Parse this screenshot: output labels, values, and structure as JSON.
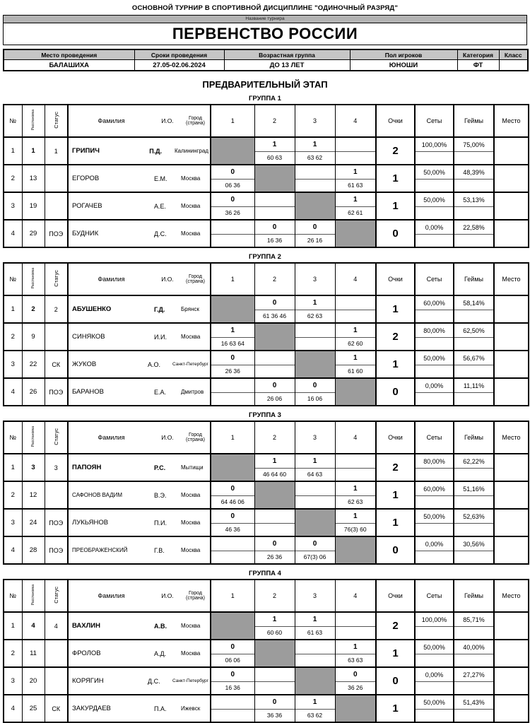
{
  "header": {
    "top_line": "ОСНОВНОЙ ТУРНИР В СПОРТИВНОЙ ДИСЦИПЛИНЕ \"ОДИНОЧНЫЙ РАЗРЯД\"",
    "tournament_name_label": "Название турнира",
    "tournament_name": "ПЕРВЕНСТВО РОССИИ"
  },
  "info": {
    "columns": [
      "Место проведения",
      "Сроки проведения",
      "Возрастная группа",
      "Пол игроков",
      "Категория",
      "Класс"
    ],
    "values": [
      "БАЛАШИХА",
      "27.05-02.06.2024",
      "ДО 13 ЛЕТ",
      "ЮНОШИ",
      "ФТ",
      ""
    ]
  },
  "stage_title": "ПРЕДВАРИТЕЛЬНЫЙ ЭТАП",
  "table_headers": {
    "num": "№",
    "seed": "Расстановка",
    "status": "Статус",
    "surname": "Фамилия",
    "initials": "И.О.",
    "city": "Город (страна)",
    "cols": [
      "1",
      "2",
      "3",
      "4"
    ],
    "points": "Очки",
    "sets": "Сеты",
    "games": "Геймы",
    "place": "Место"
  },
  "colors": {
    "diagonal_gray": "#9c9c9c",
    "info_header_gray": "#c6c6c6",
    "name_strip_gray": "#b3b3b3"
  },
  "groups": [
    {
      "title": "ГРУППА 1",
      "players": [
        {
          "num": "1",
          "seed": "1",
          "status": "1",
          "surname": "ГРИПИЧ",
          "initials": "П.Д.",
          "city": "Калининград",
          "seeded": true,
          "matches": [
            {
              "self": true
            },
            {
              "res": "1",
              "score": "60 63"
            },
            {
              "res": "1",
              "score": "63 62"
            },
            {
              "res": "",
              "score": ""
            }
          ],
          "points": "2",
          "sets": "100,00%",
          "games": "75,00%",
          "place": ""
        },
        {
          "num": "2",
          "seed": "13",
          "status": "",
          "surname": "ЕГОРОВ",
          "initials": "Е.М.",
          "city": "Москва",
          "seeded": false,
          "matches": [
            {
              "res": "0",
              "score": "06 36"
            },
            {
              "self": true
            },
            {
              "res": "",
              "score": ""
            },
            {
              "res": "1",
              "score": "61 63"
            }
          ],
          "points": "1",
          "sets": "50,00%",
          "games": "48,39%",
          "place": ""
        },
        {
          "num": "3",
          "seed": "19",
          "status": "",
          "surname": "РОГАЧЕВ",
          "initials": "А.Е.",
          "city": "Москва",
          "seeded": false,
          "matches": [
            {
              "res": "0",
              "score": "36 26"
            },
            {
              "res": "",
              "score": ""
            },
            {
              "self": true
            },
            {
              "res": "1",
              "score": "62 61"
            }
          ],
          "points": "1",
          "sets": "50,00%",
          "games": "53,13%",
          "place": ""
        },
        {
          "num": "4",
          "seed": "29",
          "status": "ПОЭ",
          "surname": "БУДНИК",
          "initials": "Д.С.",
          "city": "Москва",
          "seeded": false,
          "matches": [
            {
              "res": "",
              "score": ""
            },
            {
              "res": "0",
              "score": "16 36"
            },
            {
              "res": "0",
              "score": "26 16"
            },
            {
              "self": true
            }
          ],
          "points": "0",
          "sets": "0,00%",
          "games": "22,58%",
          "place": ""
        }
      ]
    },
    {
      "title": "ГРУППА 2",
      "players": [
        {
          "num": "1",
          "seed": "2",
          "status": "2",
          "surname": "АБУШЕНКО",
          "initials": "Г.Д.",
          "city": "Брянск",
          "seeded": true,
          "matches": [
            {
              "self": true
            },
            {
              "res": "0",
              "score": "61 36 46"
            },
            {
              "res": "1",
              "score": "62 63"
            },
            {
              "res": "",
              "score": ""
            }
          ],
          "points": "1",
          "sets": "60,00%",
          "games": "58,14%",
          "place": ""
        },
        {
          "num": "2",
          "seed": "9",
          "status": "",
          "surname": "СИНЯКОВ",
          "initials": "И.И.",
          "city": "Москва",
          "seeded": false,
          "matches": [
            {
              "res": "1",
              "score": "16 63 64"
            },
            {
              "self": true
            },
            {
              "res": "",
              "score": ""
            },
            {
              "res": "1",
              "score": "62 60"
            }
          ],
          "points": "2",
          "sets": "80,00%",
          "games": "62,50%",
          "place": ""
        },
        {
          "num": "3",
          "seed": "22",
          "status": "СК",
          "surname": "ЖУКОВ",
          "initials": "А.О.",
          "city": "Санкт-Петербург",
          "seeded": false,
          "matches": [
            {
              "res": "0",
              "score": "26 36"
            },
            {
              "res": "",
              "score": ""
            },
            {
              "self": true
            },
            {
              "res": "1",
              "score": "61 60"
            }
          ],
          "points": "1",
          "sets": "50,00%",
          "games": "56,67%",
          "place": ""
        },
        {
          "num": "4",
          "seed": "26",
          "status": "ПОЭ",
          "surname": "БАРАНОВ",
          "initials": "Е.А.",
          "city": "Дмитров",
          "seeded": false,
          "matches": [
            {
              "res": "",
              "score": ""
            },
            {
              "res": "0",
              "score": "26 06"
            },
            {
              "res": "0",
              "score": "16 06"
            },
            {
              "self": true
            }
          ],
          "points": "0",
          "sets": "0,00%",
          "games": "11,11%",
          "place": ""
        }
      ]
    },
    {
      "title": "ГРУППА 3",
      "players": [
        {
          "num": "1",
          "seed": "3",
          "status": "3",
          "surname": "ПАПОЯН",
          "initials": "Р.С.",
          "city": "Мытищи",
          "seeded": true,
          "matches": [
            {
              "self": true
            },
            {
              "res": "1",
              "score": "46 64 60"
            },
            {
              "res": "1",
              "score": "64 63"
            },
            {
              "res": "",
              "score": ""
            }
          ],
          "points": "2",
          "sets": "80,00%",
          "games": "62,22%",
          "place": ""
        },
        {
          "num": "2",
          "seed": "12",
          "status": "",
          "surname": "САФОНОВ ВАДИМ",
          "initials": "В.Э.",
          "city": "Москва",
          "seeded": false,
          "matches": [
            {
              "res": "0",
              "score": "64 46 06"
            },
            {
              "self": true
            },
            {
              "res": "",
              "score": ""
            },
            {
              "res": "1",
              "score": "62 63"
            }
          ],
          "points": "1",
          "sets": "60,00%",
          "games": "51,16%",
          "place": ""
        },
        {
          "num": "3",
          "seed": "24",
          "status": "ПОЭ",
          "surname": "ЛУКЬЯНОВ",
          "initials": "П.И.",
          "city": "Москва",
          "seeded": false,
          "matches": [
            {
              "res": "0",
              "score": "46 36"
            },
            {
              "res": "",
              "score": ""
            },
            {
              "self": true
            },
            {
              "res": "1",
              "score": "76(3) 60"
            }
          ],
          "points": "1",
          "sets": "50,00%",
          "games": "52,63%",
          "place": ""
        },
        {
          "num": "4",
          "seed": "28",
          "status": "ПОЭ",
          "surname": "ПРЕОБРАЖЕНСКИЙ",
          "initials": "Г.В.",
          "city": "Москва",
          "seeded": false,
          "matches": [
            {
              "res": "",
              "score": ""
            },
            {
              "res": "0",
              "score": "26 36"
            },
            {
              "res": "0",
              "score": "67(3) 06"
            },
            {
              "self": true
            }
          ],
          "points": "0",
          "sets": "0,00%",
          "games": "30,56%",
          "place": ""
        }
      ]
    },
    {
      "title": "ГРУППА 4",
      "players": [
        {
          "num": "1",
          "seed": "4",
          "status": "4",
          "surname": "ВАХЛИН",
          "initials": "А.В.",
          "city": "Москва",
          "seeded": true,
          "matches": [
            {
              "self": true
            },
            {
              "res": "1",
              "score": "60 60"
            },
            {
              "res": "1",
              "score": "61 63"
            },
            {
              "res": "",
              "score": ""
            }
          ],
          "points": "2",
          "sets": "100,00%",
          "games": "85,71%",
          "place": ""
        },
        {
          "num": "2",
          "seed": "11",
          "status": "",
          "surname": "ФРОЛОВ",
          "initials": "А.Д.",
          "city": "Москва",
          "seeded": false,
          "matches": [
            {
              "res": "0",
              "score": "06 06"
            },
            {
              "self": true
            },
            {
              "res": "",
              "score": ""
            },
            {
              "res": "1",
              "score": "63 63"
            }
          ],
          "points": "1",
          "sets": "50,00%",
          "games": "40,00%",
          "place": ""
        },
        {
          "num": "3",
          "seed": "20",
          "status": "",
          "surname": "КОРЯГИН",
          "initials": "Д.С.",
          "city": "Санкт-Петербург",
          "seeded": false,
          "matches": [
            {
              "res": "0",
              "score": "16 36"
            },
            {
              "res": "",
              "score": ""
            },
            {
              "self": true
            },
            {
              "res": "0",
              "score": "36 26"
            }
          ],
          "points": "0",
          "sets": "0,00%",
          "games": "27,27%",
          "place": ""
        },
        {
          "num": "4",
          "seed": "25",
          "status": "СК",
          "surname": "ЗАКУРДАЕВ",
          "initials": "П.А.",
          "city": "Ижевск",
          "seeded": false,
          "matches": [
            {
              "res": "",
              "score": ""
            },
            {
              "res": "0",
              "score": "36 36"
            },
            {
              "res": "1",
              "score": "63 62"
            },
            {
              "self": true
            }
          ],
          "points": "1",
          "sets": "50,00%",
          "games": "51,43%",
          "place": ""
        }
      ]
    }
  ]
}
